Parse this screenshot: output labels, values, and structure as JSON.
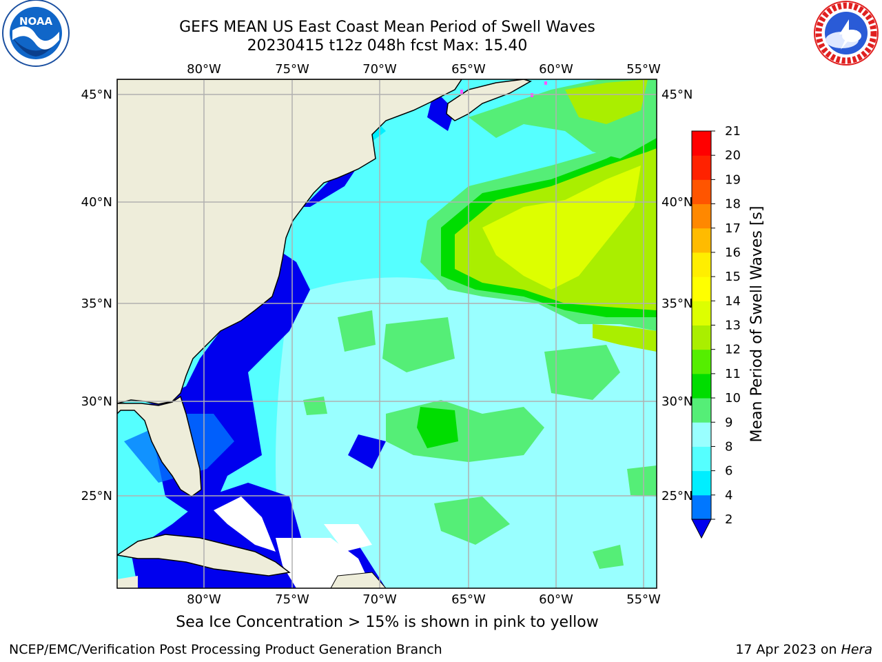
{
  "title": {
    "line1": "GEFS MEAN US East Coast Mean Period of Swell Waves",
    "line2": "20230415 t12z 048h fcst   Max: 15.40"
  },
  "logos": {
    "left": "noaa-logo",
    "left_text": "NOAA",
    "right": "nws-logo",
    "right_text": "NATIONAL WEATHER SERVICE"
  },
  "map": {
    "lon_labels": [
      "80°W",
      "75°W",
      "70°W",
      "65°W",
      "60°W",
      "55°W"
    ],
    "lat_labels": [
      "45°N",
      "40°N",
      "35°N",
      "30°N",
      "25°N"
    ],
    "land_color": "#eeedda",
    "missing_color": "#ffffff",
    "grid_color": "#b0b0b0"
  },
  "colorbar": {
    "label": "Mean Period of Swell Waves [s]",
    "ticks": [
      "2",
      "4",
      "6",
      "8",
      "9",
      "10",
      "11",
      "12",
      "13",
      "14",
      "15",
      "16",
      "17",
      "18",
      "19",
      "20",
      "21"
    ],
    "colors": [
      "#0000ee",
      "#0077ff",
      "#00eeff",
      "#55ffff",
      "#99ffff",
      "#55ee77",
      "#00dd00",
      "#55ee00",
      "#aaee00",
      "#ddff00",
      "#ffff00",
      "#ffee00",
      "#ffbb00",
      "#ff8800",
      "#ff5500",
      "#ff2200",
      "#ff0000"
    ]
  },
  "sea_ice_note": "Sea Ice Concentration > 15% is shown in pink to yellow",
  "footer": {
    "left": "NCEP/EMC/Verification Post Processing Product Generation Branch",
    "right_date": "17 Apr 2023 on",
    "right_machine": "Hera"
  }
}
